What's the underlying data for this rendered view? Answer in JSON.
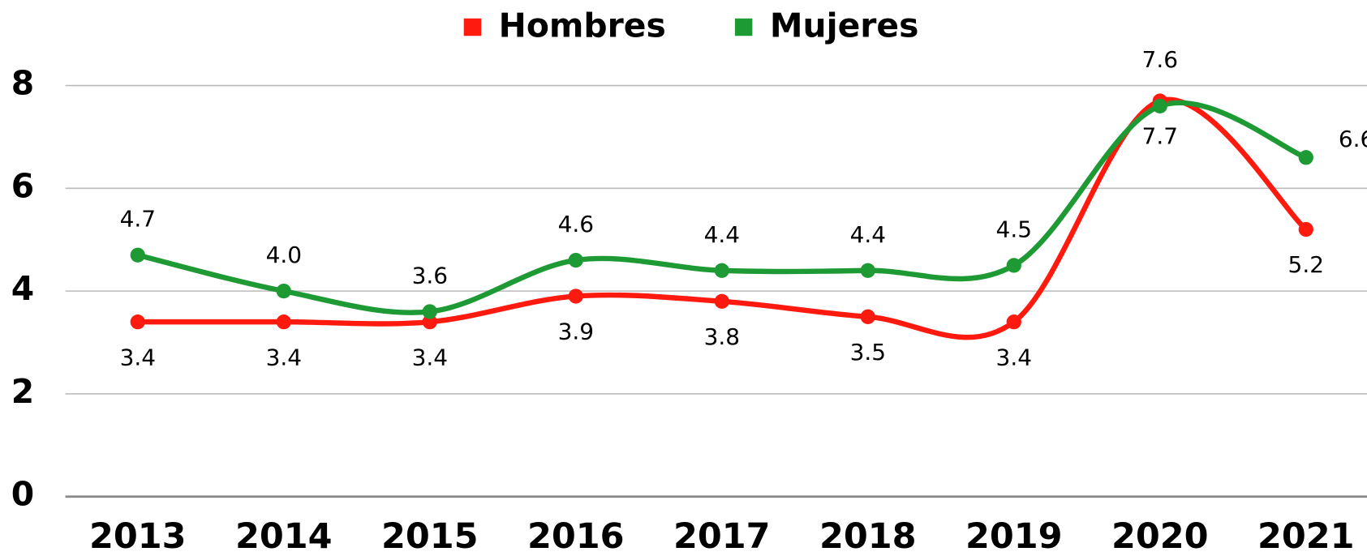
{
  "chart_data": {
    "type": "line",
    "categories": [
      "2013",
      "2014",
      "2015",
      "2016",
      "2017",
      "2018",
      "2019",
      "2020",
      "2021"
    ],
    "series": [
      {
        "name": "Hombres",
        "color": "#ff1a0f",
        "values": [
          3.4,
          3.4,
          3.4,
          3.9,
          3.8,
          3.5,
          3.4,
          7.7,
          5.2
        ]
      },
      {
        "name": "Mujeres",
        "color": "#1e9a35",
        "values": [
          4.7,
          4.0,
          3.6,
          4.6,
          4.4,
          4.4,
          4.5,
          7.6,
          6.6
        ]
      }
    ],
    "ylim": [
      0,
      8
    ],
    "yticks": [
      0,
      2,
      4,
      6,
      8
    ],
    "grid": true,
    "legend": "top"
  }
}
